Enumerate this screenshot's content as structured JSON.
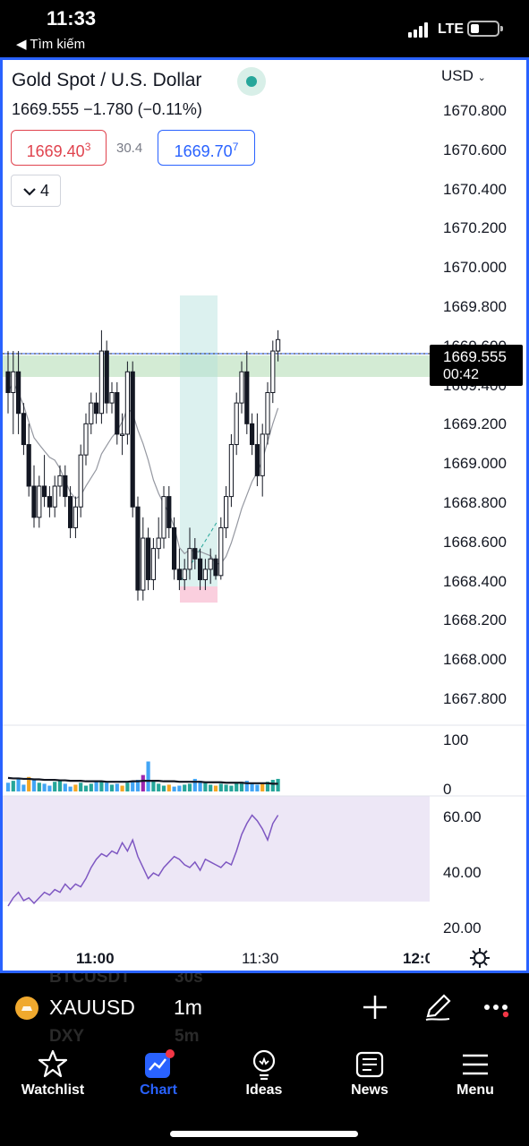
{
  "status_bar": {
    "time": "11:33",
    "back_label": "◀ Tìm kiếm",
    "network": "LTE"
  },
  "header": {
    "symbol_title": "Gold Spot / U.S. Dollar",
    "price_line": "1669.555  −1.780 (−0.11%)",
    "bid": "1669.403",
    "spread": "30.4",
    "ask": "1669.707",
    "indicator_count": "4",
    "currency": "USD"
  },
  "price_axis": [
    "1670.800",
    "1670.600",
    "1670.400",
    "1670.200",
    "1670.000",
    "1669.800",
    "1669.600",
    "1669.400",
    "1669.200",
    "1669.000",
    "1668.800",
    "1668.600",
    "1668.400",
    "1668.200",
    "1668.000",
    "1667.800"
  ],
  "price_tag": {
    "price": "1669.555",
    "countdown": "00:42"
  },
  "volume_axis": [
    "100",
    "0"
  ],
  "rsi_axis": [
    "60.00",
    "40.00",
    "20.00"
  ],
  "time_axis": [
    "11:00",
    "11:30",
    "12:0"
  ],
  "symbol_bar": {
    "ticker": "XAUUSD",
    "interval": "1m",
    "ghost_top": "BTCUSDT",
    "ghost_top_interval": "30s",
    "ghost_bottom": "DXY",
    "ghost_bottom_interval": "5m"
  },
  "tabs": [
    {
      "label": "Watchlist",
      "icon": "star-icon"
    },
    {
      "label": "Chart",
      "icon": "chart-icon"
    },
    {
      "label": "Ideas",
      "icon": "lightbulb-icon"
    },
    {
      "label": "News",
      "icon": "newspaper-icon"
    },
    {
      "label": "Menu",
      "icon": "hamburger-icon"
    }
  ],
  "colors": {
    "accent": "#2962ff",
    "bid": "#e0434e",
    "up_volume": "#26a69a",
    "rsi": "#7e57c2"
  },
  "chart_data": {
    "type": "candlestick",
    "symbol": "XAUUSD",
    "interval": "1m",
    "ylim": [
      1667.7,
      1670.9
    ],
    "last_price": 1669.555,
    "candles": [
      [
        1669.4,
        1669.5,
        1669.2,
        1669.3
      ],
      [
        1669.3,
        1669.5,
        1669.1,
        1669.4
      ],
      [
        1669.4,
        1669.5,
        1669.1,
        1669.2
      ],
      [
        1669.2,
        1669.25,
        1669.0,
        1669.05
      ],
      [
        1669.05,
        1669.15,
        1668.8,
        1668.85
      ],
      [
        1668.85,
        1668.95,
        1668.65,
        1668.7
      ],
      [
        1668.7,
        1668.9,
        1668.65,
        1668.85
      ],
      [
        1668.85,
        1669.0,
        1668.75,
        1668.8
      ],
      [
        1668.8,
        1668.85,
        1668.7,
        1668.75
      ],
      [
        1668.75,
        1668.9,
        1668.7,
        1668.85
      ],
      [
        1668.85,
        1668.95,
        1668.8,
        1668.9
      ],
      [
        1668.9,
        1668.95,
        1668.75,
        1668.8
      ],
      [
        1668.8,
        1668.85,
        1668.6,
        1668.65
      ],
      [
        1668.65,
        1668.8,
        1668.6,
        1668.75
      ],
      [
        1668.75,
        1669.05,
        1668.7,
        1669.0
      ],
      [
        1669.0,
        1669.2,
        1668.95,
        1669.15
      ],
      [
        1669.15,
        1669.3,
        1669.1,
        1669.25
      ],
      [
        1669.25,
        1669.3,
        1669.15,
        1669.2
      ],
      [
        1669.2,
        1669.6,
        1669.15,
        1669.5
      ],
      [
        1669.5,
        1669.55,
        1669.2,
        1669.25
      ],
      [
        1669.25,
        1669.35,
        1669.2,
        1669.3
      ],
      [
        1669.3,
        1669.35,
        1669.05,
        1669.1
      ],
      [
        1669.1,
        1669.2,
        1669.0,
        1669.1
      ],
      [
        1669.1,
        1669.45,
        1669.05,
        1669.4
      ],
      [
        1669.4,
        1669.45,
        1668.7,
        1668.75
      ],
      [
        1668.75,
        1668.8,
        1668.3,
        1668.35
      ],
      [
        1668.35,
        1668.7,
        1668.3,
        1668.6
      ],
      [
        1668.6,
        1668.65,
        1668.35,
        1668.4
      ],
      [
        1668.4,
        1668.6,
        1668.35,
        1668.55
      ],
      [
        1668.55,
        1668.7,
        1668.5,
        1668.6
      ],
      [
        1668.6,
        1668.85,
        1668.55,
        1668.8
      ],
      [
        1668.8,
        1668.85,
        1668.6,
        1668.65
      ],
      [
        1668.65,
        1668.7,
        1668.4,
        1668.45
      ],
      [
        1668.45,
        1668.55,
        1668.35,
        1668.4
      ],
      [
        1668.4,
        1668.5,
        1668.35,
        1668.45
      ],
      [
        1668.45,
        1668.65,
        1668.4,
        1668.55
      ],
      [
        1668.55,
        1668.6,
        1668.45,
        1668.5
      ],
      [
        1668.5,
        1668.55,
        1668.35,
        1668.4
      ],
      [
        1668.4,
        1668.5,
        1668.35,
        1668.45
      ],
      [
        1668.45,
        1668.55,
        1668.38,
        1668.5
      ],
      [
        1668.5,
        1668.52,
        1668.4,
        1668.42
      ],
      [
        1668.42,
        1668.7,
        1668.4,
        1668.65
      ],
      [
        1668.65,
        1668.85,
        1668.6,
        1668.8
      ],
      [
        1668.8,
        1669.1,
        1668.75,
        1669.05
      ],
      [
        1669.05,
        1669.3,
        1669.0,
        1669.25
      ],
      [
        1669.25,
        1669.45,
        1669.2,
        1669.4
      ],
      [
        1669.4,
        1669.5,
        1669.1,
        1669.15
      ],
      [
        1669.15,
        1669.2,
        1669.0,
        1669.05
      ],
      [
        1669.05,
        1669.2,
        1668.85,
        1668.9
      ],
      [
        1668.9,
        1669.15,
        1668.8,
        1669.1
      ],
      [
        1669.1,
        1669.35,
        1669.05,
        1669.3
      ],
      [
        1669.3,
        1669.55,
        1669.25,
        1669.5
      ],
      [
        1669.5,
        1669.6,
        1669.45,
        1669.555
      ]
    ],
    "volume_ylim": [
      0,
      100
    ],
    "volume": [
      18,
      22,
      26,
      14,
      30,
      24,
      18,
      16,
      12,
      20,
      22,
      16,
      10,
      14,
      18,
      12,
      16,
      20,
      22,
      18,
      14,
      16,
      12,
      18,
      20,
      24,
      34,
      62,
      22,
      16,
      12,
      14,
      10,
      12,
      14,
      16,
      26,
      22,
      18,
      14,
      12,
      16,
      14,
      12,
      18,
      20,
      22,
      16,
      14,
      18,
      20,
      24,
      26
    ],
    "volume_ma": [
      28,
      27,
      27,
      26,
      26,
      25,
      25,
      24,
      24,
      24,
      23,
      23,
      22,
      22,
      22,
      21,
      21,
      21,
      21,
      20,
      20,
      20,
      20,
      20,
      21,
      21,
      22,
      22,
      22,
      22,
      21,
      21,
      21,
      20,
      20,
      20,
      20,
      20,
      19,
      19,
      19,
      19,
      18,
      18,
      18,
      18,
      17,
      17,
      17,
      17,
      17,
      16,
      16
    ],
    "rsi_ylim": [
      15,
      68
    ],
    "rsi_band": [
      30,
      70
    ],
    "rsi": [
      28,
      31,
      33,
      30,
      31,
      29,
      31,
      33,
      32,
      34,
      33,
      36,
      34,
      36,
      35,
      38,
      42,
      45,
      47,
      46,
      48,
      47,
      51,
      48,
      52,
      46,
      42,
      38,
      40,
      39,
      42,
      44,
      46,
      45,
      43,
      42,
      44,
      41,
      45,
      44,
      43,
      42,
      44,
      43,
      48,
      54,
      58,
      61,
      59,
      56,
      52,
      58,
      61
    ]
  }
}
